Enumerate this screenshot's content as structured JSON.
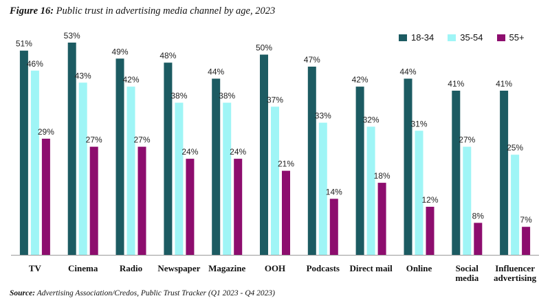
{
  "title": {
    "figure": "Figure 16:",
    "text": "Public trust in advertising media channel by age, 2023"
  },
  "source": {
    "label": "Source:",
    "text": "Advertising Association/Credos, Public Trust Tracker (Q1 2023 - Q4 2023)"
  },
  "chart_data": {
    "type": "bar",
    "title": "Public trust in advertising media channel by age, 2023",
    "xlabel": "",
    "ylabel": "",
    "ylim": [
      0,
      58
    ],
    "grid": false,
    "legend_position": "top-right",
    "value_suffix": "%",
    "categories": [
      [
        "TV"
      ],
      [
        "Cinema"
      ],
      [
        "Radio"
      ],
      [
        "Newspaper"
      ],
      [
        "Magazine"
      ],
      [
        "OOH"
      ],
      [
        "Podcasts"
      ],
      [
        "Direct mail"
      ],
      [
        "Online"
      ],
      [
        "Social",
        "media"
      ],
      [
        "Influencer",
        "advertising"
      ]
    ],
    "series": [
      {
        "name": "18-34",
        "color": "#1c5b62",
        "values": [
          51,
          53,
          49,
          48,
          44,
          50,
          47,
          42,
          44,
          41,
          41
        ]
      },
      {
        "name": "35-54",
        "color": "#9ff5f6",
        "values": [
          46,
          43,
          42,
          38,
          38,
          37,
          33,
          32,
          31,
          27,
          25
        ]
      },
      {
        "name": "55+",
        "color": "#8d0d6e",
        "values": [
          29,
          27,
          27,
          24,
          24,
          21,
          14,
          18,
          12,
          8,
          7
        ]
      }
    ]
  }
}
